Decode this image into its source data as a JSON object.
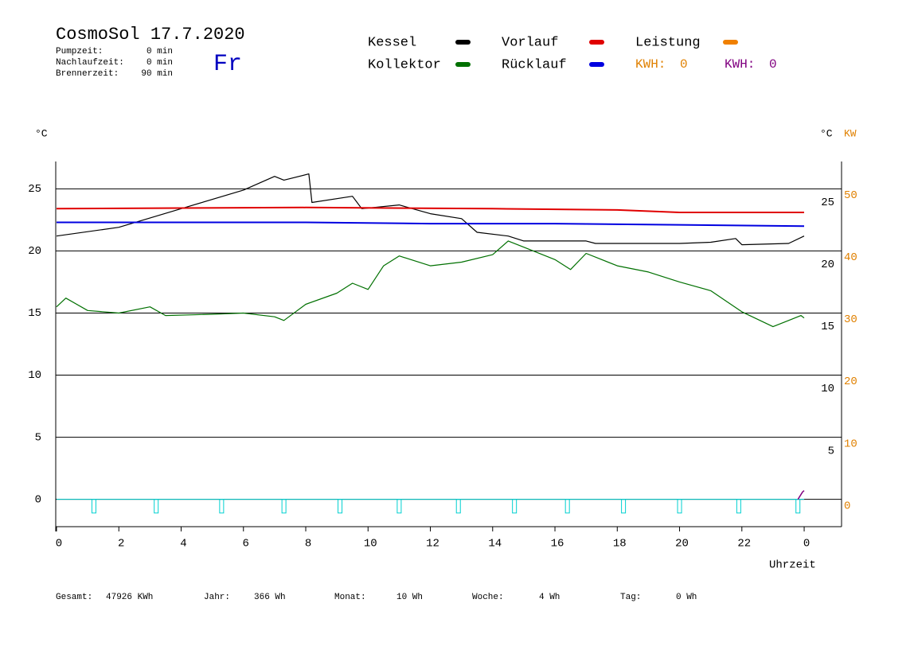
{
  "chart_data": {
    "type": "line",
    "title": "CosmoSol 17.7.2020",
    "day": "Fr",
    "info": [
      {
        "label": "Pumpzeit:",
        "value": "0 min"
      },
      {
        "label": "Nachlaufzeit:",
        "value": "0 min"
      },
      {
        "label": "Brennerzeit:",
        "value": "90 min"
      }
    ],
    "y_label": "°C",
    "y_right_label": "°C",
    "y2_label": "KW",
    "x_label": "Uhrzeit",
    "xlim": [
      0,
      25.2
    ],
    "xticks": [
      0,
      2,
      4,
      6,
      8,
      10,
      12,
      14,
      16,
      18,
      20,
      22,
      {
        "value": 24,
        "label": "0"
      }
    ],
    "ylim": [
      -2.2,
      27.2
    ],
    "yticks": [
      0,
      5,
      10,
      15,
      20,
      25
    ],
    "y_right_ticks": [
      5,
      10,
      15,
      20,
      25
    ],
    "y2lim": [
      -4.4,
      54.4
    ],
    "y2ticks": [
      0,
      10,
      20,
      30,
      40,
      50
    ],
    "y2_color": "#e08000",
    "grid": true,
    "series": [
      {
        "name": "Kessel",
        "color": "#000000",
        "x": [
          0,
          2,
          4,
          6,
          7,
          7.3,
          8.1,
          8.2,
          9.5,
          9.8,
          11,
          12,
          13,
          13.5,
          14.5,
          15,
          17,
          17.3,
          20,
          21,
          21.8,
          22,
          23.5,
          24
        ],
        "values": [
          21.2,
          21.9,
          23.4,
          24.9,
          26.0,
          25.7,
          26.2,
          23.9,
          24.4,
          23.4,
          23.7,
          23.0,
          22.6,
          21.5,
          21.2,
          20.8,
          20.8,
          20.6,
          20.6,
          20.7,
          21.0,
          20.5,
          20.6,
          21.2
        ]
      },
      {
        "name": "Kollektor",
        "color": "#007000",
        "x": [
          0,
          0.3,
          1,
          2,
          3,
          3.5,
          5,
          6,
          7,
          7.3,
          8,
          9,
          9.5,
          10,
          10.5,
          11,
          12,
          13,
          14,
          14.5,
          15,
          16,
          16.5,
          17,
          18,
          19,
          20,
          21,
          22,
          23,
          23.5,
          23.9,
          24
        ],
        "values": [
          15.5,
          16.2,
          15.2,
          15.0,
          15.5,
          14.8,
          14.9,
          15.0,
          14.7,
          14.4,
          15.7,
          16.6,
          17.4,
          16.9,
          18.8,
          19.6,
          18.8,
          19.1,
          19.7,
          20.8,
          20.3,
          19.3,
          18.5,
          19.8,
          18.8,
          18.3,
          17.5,
          16.8,
          15.1,
          13.9,
          14.4,
          14.8,
          14.6
        ]
      },
      {
        "name": "Vorlauf",
        "color": "#e00000",
        "x": [
          0,
          8,
          14,
          18,
          20,
          24
        ],
        "values": [
          23.4,
          23.5,
          23.4,
          23.3,
          23.1,
          23.1
        ]
      },
      {
        "name": "Rücklauf",
        "color": "#0000e0",
        "x": [
          0,
          8,
          12,
          16,
          20,
          24
        ],
        "values": [
          22.3,
          22.3,
          22.2,
          22.2,
          22.1,
          22.0
        ]
      },
      {
        "name": "Leistung",
        "color": "#f08000",
        "x": [],
        "values": []
      }
    ],
    "pulses": {
      "color": "#00d0d0",
      "x": [
        1.2,
        3.2,
        5.3,
        7.3,
        9.1,
        11.0,
        12.9,
        14.7,
        16.4,
        18.2,
        20.0,
        21.9,
        23.8
      ],
      "values": [
        -1.1,
        -1.1,
        -1.1,
        -1.1,
        -1.1,
        -1.1,
        -1.1,
        -1.1,
        -1.1,
        -1.1,
        -1.1,
        -1.1,
        -1.1
      ]
    },
    "extra_line": {
      "color": "#800080",
      "x": [
        23.8,
        23.95,
        24
      ],
      "values": [
        0,
        0.6,
        0.7
      ]
    },
    "kwh": [
      {
        "label": "KWH:",
        "value": 0,
        "color": "#e08000"
      },
      {
        "label": "KWH:",
        "value": 0,
        "color": "#800080"
      }
    ],
    "footer": [
      {
        "label": "Gesamt:",
        "value": "47926 KWh"
      },
      {
        "label": "Jahr:",
        "value": "366 Wh"
      },
      {
        "label": "Monat:",
        "value": "10 Wh"
      },
      {
        "label": "Woche:",
        "value": "4 Wh"
      },
      {
        "label": "Tag:",
        "value": "0 Wh"
      }
    ]
  }
}
